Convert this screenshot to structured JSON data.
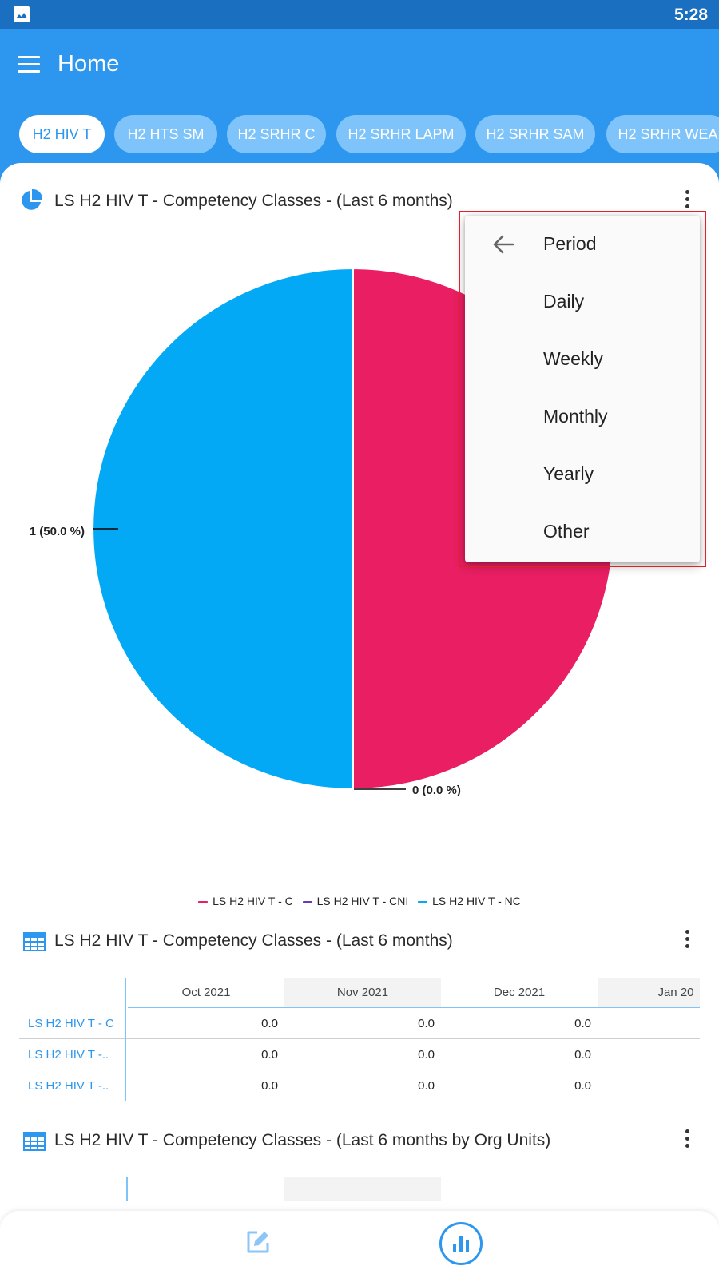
{
  "status_bar": {
    "time": "5:28",
    "icon": "gallery-icon"
  },
  "app_bar": {
    "title": "Home",
    "menu_icon": "hamburger-menu-icon"
  },
  "chips": [
    {
      "label": "H2 HIV T",
      "active": true
    },
    {
      "label": "H2 HTS SM",
      "active": false
    },
    {
      "label": "H2 SRHR C",
      "active": false
    },
    {
      "label": "H2 SRHR LAPM",
      "active": false
    },
    {
      "label": "H2 SRHR SAM",
      "active": false
    },
    {
      "label": "H2 SRHR WEA",
      "active": false
    }
  ],
  "pie_section": {
    "title": "LS H2 HIV T - Competency Classes - (Last 6 months)",
    "icon": "pie-chart-icon"
  },
  "chart_data": {
    "type": "pie",
    "slices": [
      {
        "name": "LS H2 HIV T - C",
        "value": 1,
        "percent": 50.0,
        "label": "1 (50.0 %)",
        "color": "#e91e63"
      },
      {
        "name": "LS H2 HIV T - CNI",
        "value": 0,
        "percent": 0.0,
        "label": "0 (0.0 %)",
        "color": "#673ab7"
      },
      {
        "name": "LS H2 HIV T - NC",
        "value": 1,
        "percent": 50.0,
        "label": "1 (50.0 %)",
        "color": "#03a9f4"
      }
    ],
    "legend": [
      "LS H2 HIV T - C",
      "LS H2 HIV T - CNI",
      "LS H2 HIV T - NC"
    ],
    "legend_position": "bottom"
  },
  "table_section": {
    "title": "LS H2 HIV T - Competency Classes - (Last 6 months)",
    "icon": "table-icon",
    "columns": [
      "Oct 2021",
      "Nov 2021",
      "Dec 2021",
      "Jan 20"
    ],
    "rows": [
      {
        "label": "LS H2 HIV T - C",
        "values": [
          "0.0",
          "0.0",
          "0.0"
        ]
      },
      {
        "label": "LS H2 HIV T -..",
        "values": [
          "0.0",
          "0.0",
          "0.0"
        ]
      },
      {
        "label": "LS H2 HIV T -..",
        "values": [
          "0.0",
          "0.0",
          "0.0"
        ]
      }
    ]
  },
  "org_section": {
    "title": "LS H2 HIV T - Competency Classes - (Last 6 months by Org Units)",
    "icon": "table-icon"
  },
  "period_menu": {
    "items": [
      {
        "label": "Period",
        "back": true
      },
      {
        "label": "Daily",
        "back": false
      },
      {
        "label": "Weekly",
        "back": false
      },
      {
        "label": "Monthly",
        "back": false
      },
      {
        "label": "Yearly",
        "back": false
      },
      {
        "label": "Other",
        "back": false
      }
    ],
    "highlight_color": "#e0202a"
  },
  "bottom_nav": {
    "items": [
      "edit-icon",
      "analytics-icon"
    ],
    "accent": "#2d96ee"
  }
}
